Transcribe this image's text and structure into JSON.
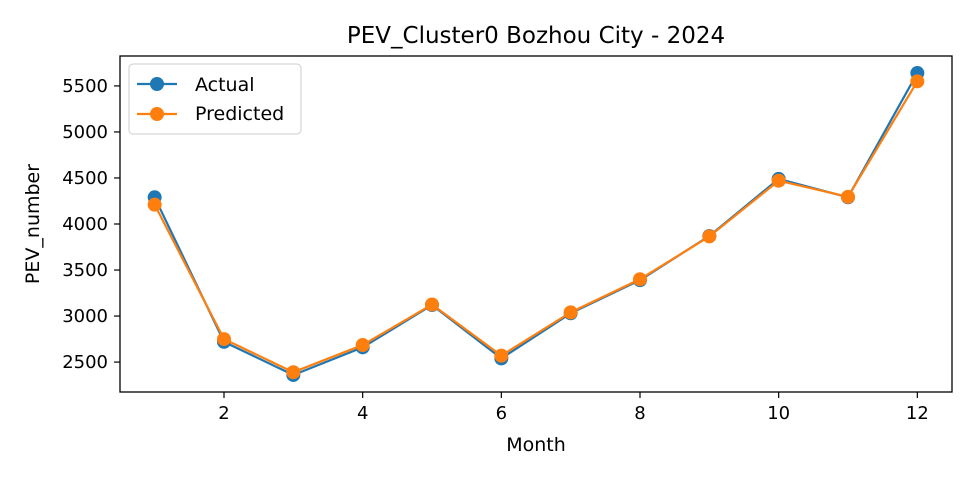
{
  "chart_data": {
    "type": "line",
    "title": "PEV_Cluster0 Bozhou City - 2024",
    "xlabel": "Month",
    "ylabel": "PEV_number",
    "x": [
      1,
      2,
      3,
      4,
      5,
      6,
      7,
      8,
      9,
      10,
      11,
      12
    ],
    "xlim": [
      0.5,
      12.5
    ],
    "ylim": [
      2175,
      5825
    ],
    "x_ticks": [
      2,
      4,
      6,
      8,
      10,
      12
    ],
    "y_ticks": [
      2500,
      3000,
      3500,
      4000,
      4500,
      5000,
      5500
    ],
    "grid": false,
    "legend_position": "top-left",
    "series": [
      {
        "name": "Actual",
        "color": "#1f77b4",
        "marker": "circle",
        "values": [
          4290,
          2720,
          2360,
          2660,
          3120,
          2540,
          3030,
          3390,
          3870,
          4490,
          4290,
          5640
        ]
      },
      {
        "name": "Predicted",
        "color": "#ff7f0e",
        "marker": "circle",
        "values": [
          4210,
          2750,
          2390,
          2685,
          3125,
          2570,
          3040,
          3400,
          3865,
          4470,
          4295,
          5550
        ]
      }
    ]
  }
}
